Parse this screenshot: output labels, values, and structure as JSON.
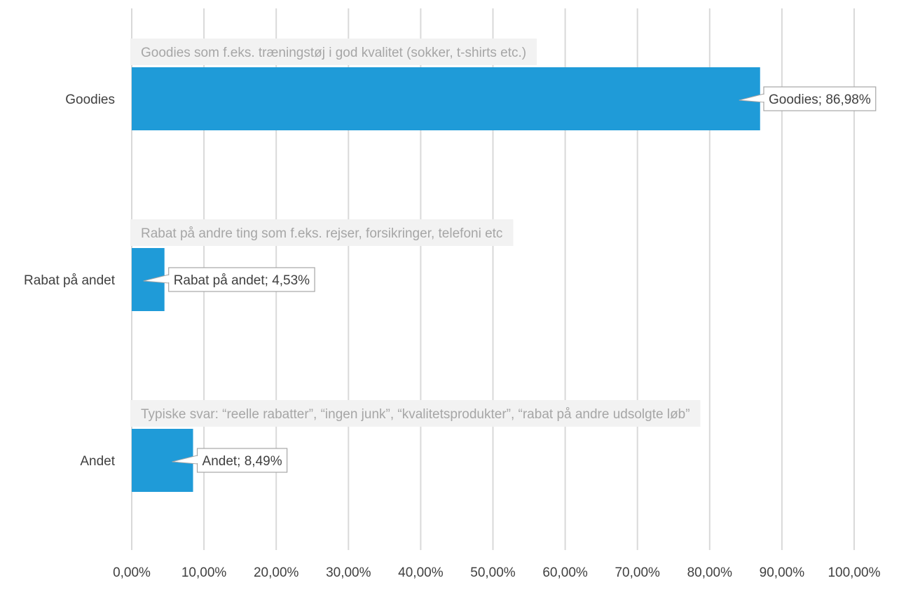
{
  "chart_data": {
    "type": "bar",
    "orientation": "horizontal",
    "categories": [
      "Goodies",
      "Rabat på andet",
      "Andet"
    ],
    "values": [
      86.98,
      4.53,
      8.49
    ],
    "data_labels": [
      "Goodies; 86,98%",
      "Rabat på andet; 4,53%",
      "Andet; 8,49%"
    ],
    "annotations": [
      "Goodies som f.eks. træningstøj i god kvalitet (sokker, t-shirts etc.)",
      "Rabat på andre ting som f.eks. rejser, forsikringer, telefoni etc",
      "Typiske svar: “reelle rabatter”, “ingen junk”, “kvalitetsprodukter”, “rabat på andre udsolgte løb”"
    ],
    "xlim": [
      0,
      100
    ],
    "x_ticks": [
      0,
      10,
      20,
      30,
      40,
      50,
      60,
      70,
      80,
      90,
      100
    ],
    "x_tick_labels": [
      "0,00%",
      "10,00%",
      "20,00%",
      "30,00%",
      "40,00%",
      "50,00%",
      "60,00%",
      "70,00%",
      "80,00%",
      "90,00%",
      "100,00%"
    ],
    "grid": "vertical",
    "legend": "none",
    "bar_color": "#1f9bd8",
    "grid_color": "#d9d9d9",
    "title": "",
    "xlabel": "",
    "ylabel": ""
  }
}
